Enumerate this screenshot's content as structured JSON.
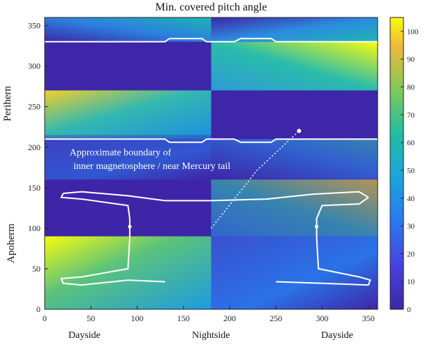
{
  "chart_data": {
    "type": "heatmap",
    "title": "Min. covered pitch angle",
    "xlabel_segments": [
      "Dayside",
      "Nightside",
      "Dayside"
    ],
    "ylabel_segments": [
      "Apoherm",
      "Perihern"
    ],
    "xlim": [
      0,
      360
    ],
    "ylim": [
      0,
      360
    ],
    "xticks": [
      0,
      50,
      100,
      150,
      200,
      250,
      300,
      350
    ],
    "yticks": [
      0,
      50,
      100,
      150,
      200,
      250,
      300,
      350
    ],
    "colorbar": {
      "min": 0,
      "max": 105,
      "ticks": [
        0,
        10,
        20,
        30,
        40,
        50,
        60,
        70,
        80,
        90,
        100
      ],
      "colormap": "parula"
    },
    "grid": false,
    "annotation": "Approximate boundary of inner magnetosphere / near Mercury tail",
    "colors": {
      "low": "#3e26a8",
      "mid": "#1fb4b2",
      "high": "#f9fb0e",
      "contour": "#ffffff"
    }
  }
}
